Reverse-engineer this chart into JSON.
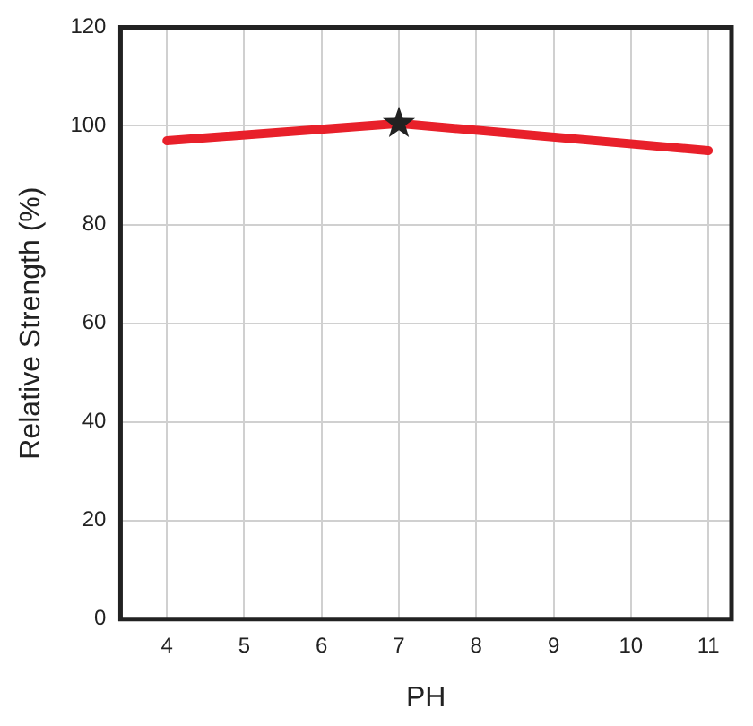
{
  "chart_data": {
    "type": "line",
    "xlabel": "PH",
    "ylabel": "Relative Strength (%)",
    "xlim": [
      3.4,
      11.3
    ],
    "xticks": [
      4,
      5,
      6,
      7,
      8,
      9,
      10,
      11
    ],
    "ylim": [
      0,
      120
    ],
    "yticks": [
      0,
      20,
      40,
      60,
      80,
      100,
      120
    ],
    "grid": true,
    "legend": false,
    "line_style": "solid",
    "series": [
      {
        "color": "#e8202a",
        "x": [
          4,
          7,
          11
        ],
        "values": [
          97,
          100.5,
          95
        ],
        "marker": "none"
      },
      {
        "type": "scatter",
        "color": "#222222",
        "x": [
          7
        ],
        "values": [
          100.5
        ],
        "marker": "star"
      }
    ]
  }
}
